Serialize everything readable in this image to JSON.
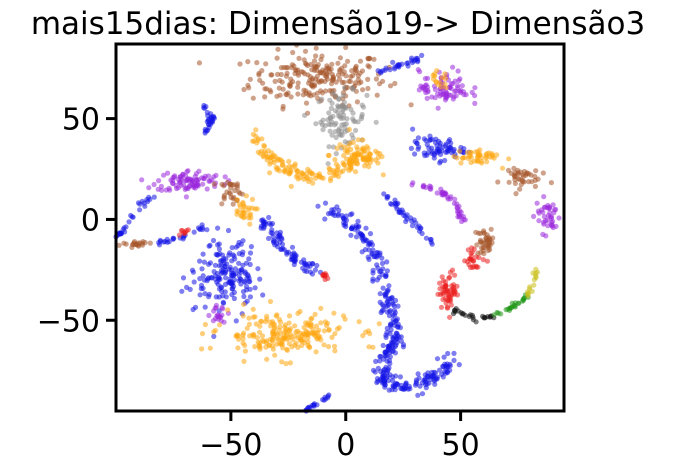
{
  "chart_data": {
    "type": "scatter",
    "title": "mais15dias: Dimensão19-> Dimensão3",
    "xlabel": "",
    "ylabel": "",
    "xlim": [
      -100,
      95
    ],
    "ylim": [
      -95,
      87
    ],
    "x_ticks": [
      {
        "value": -50,
        "label": "−50"
      },
      {
        "value": 0,
        "label": "0"
      },
      {
        "value": 50,
        "label": "50"
      }
    ],
    "y_ticks": [
      {
        "value": 50,
        "label": "50"
      },
      {
        "value": 0,
        "label": "0"
      },
      {
        "value": -50,
        "label": "−50"
      }
    ],
    "grid": false,
    "legend": false,
    "point_alpha": 0.55,
    "colors": {
      "blue": "#1414e6",
      "orange": "#ffa50f",
      "purple": "#9b28dc",
      "brown": "#a5562a",
      "gray": "#8c8c8c",
      "red": "#eb1e1e",
      "black": "#111111",
      "green": "#1e9614",
      "olive": "#c8be14"
    },
    "clusters": [
      {
        "color": "brown",
        "shape": "blob",
        "cx": -12,
        "cy": 70,
        "rx": 27,
        "ry": 12,
        "n": 220
      },
      {
        "color": "gray",
        "shape": "blob",
        "cx": -2,
        "cy": 50,
        "rx": 10,
        "ry": 12,
        "n": 90
      },
      {
        "color": "orange",
        "shape": "blob",
        "cx": 4,
        "cy": 32,
        "rx": 10,
        "ry": 7,
        "n": 60
      },
      {
        "color": "orange",
        "shape": "poly",
        "points": [
          [
            -40,
            42
          ],
          [
            -33,
            30
          ],
          [
            -22,
            23
          ],
          [
            -10,
            21
          ],
          [
            2,
            27
          ],
          [
            12,
            32
          ]
        ],
        "w": 3.5,
        "n": 140
      },
      {
        "color": "blue",
        "shape": "poly",
        "points": [
          [
            -62,
            57
          ],
          [
            -58,
            50
          ],
          [
            -61,
            43
          ]
        ],
        "w": 1.5,
        "n": 30
      },
      {
        "color": "purple",
        "shape": "blob",
        "cx": -68,
        "cy": 19,
        "rx": 13,
        "ry": 5,
        "n": 90
      },
      {
        "color": "brown",
        "shape": "blob",
        "cx": -50,
        "cy": 14,
        "rx": 5,
        "ry": 6,
        "n": 30
      },
      {
        "color": "orange",
        "shape": "blob",
        "cx": -45,
        "cy": 4,
        "rx": 5,
        "ry": 6,
        "n": 30
      },
      {
        "color": "blue",
        "shape": "poly",
        "points": [
          [
            -37,
            1
          ],
          [
            -30,
            -10
          ],
          [
            -22,
            -20
          ],
          [
            -14,
            -25
          ]
        ],
        "w": 3,
        "n": 80
      },
      {
        "color": "red",
        "shape": "blob",
        "cx": -9,
        "cy": -28,
        "rx": 2,
        "ry": 2,
        "n": 10
      },
      {
        "color": "blue",
        "shape": "poly",
        "points": [
          [
            -83,
            12
          ],
          [
            -90,
            6
          ],
          [
            -97,
            -5
          ],
          [
            -99,
            -8
          ]
        ],
        "w": 1.2,
        "n": 30
      },
      {
        "color": "blue",
        "shape": "poly",
        "points": [
          [
            -82,
            -12
          ],
          [
            -72,
            -9
          ],
          [
            -60,
            -3
          ]
        ],
        "w": 1.2,
        "n": 25
      },
      {
        "color": "brown",
        "shape": "blob",
        "cx": -90,
        "cy": -12,
        "rx": 5,
        "ry": 2,
        "n": 20
      },
      {
        "color": "red",
        "shape": "blob",
        "cx": -71,
        "cy": -6,
        "rx": 2,
        "ry": 2,
        "n": 8
      },
      {
        "color": "blue",
        "shape": "blob",
        "cx": -52,
        "cy": -27,
        "rx": 12,
        "ry": 15,
        "n": 170
      },
      {
        "color": "purple",
        "shape": "blob",
        "cx": -56,
        "cy": -47,
        "rx": 4,
        "ry": 4,
        "n": 20
      },
      {
        "color": "orange",
        "shape": "blob",
        "cx": -27,
        "cy": -57,
        "rx": 26,
        "ry": 10,
        "n": 210
      },
      {
        "color": "blue",
        "shape": "poly",
        "points": [
          [
            -8,
            7
          ],
          [
            5,
            -5
          ],
          [
            14,
            -20
          ],
          [
            18,
            -38
          ],
          [
            20,
            -50
          ],
          [
            22,
            -62
          ],
          [
            16,
            -70
          ],
          [
            15,
            -80
          ],
          [
            26,
            -83
          ],
          [
            36,
            -80
          ],
          [
            47,
            -70
          ]
        ],
        "w": 4,
        "n": 330
      },
      {
        "color": "blue",
        "shape": "poly",
        "points": [
          [
            -18,
            -95
          ],
          [
            -6,
            -87
          ]
        ],
        "w": 1.2,
        "n": 20
      },
      {
        "color": "blue",
        "shape": "poly",
        "points": [
          [
            18,
            12
          ],
          [
            25,
            3
          ],
          [
            32,
            -5
          ],
          [
            38,
            -12
          ]
        ],
        "w": 1.5,
        "n": 40
      },
      {
        "color": "purple",
        "shape": "poly",
        "points": [
          [
            28,
            18
          ],
          [
            40,
            15
          ],
          [
            48,
            8
          ],
          [
            51,
            -1
          ]
        ],
        "w": 1.2,
        "n": 45
      },
      {
        "color": "blue",
        "shape": "blob",
        "cx": 40,
        "cy": 35,
        "rx": 10,
        "ry": 5,
        "n": 70
      },
      {
        "color": "orange",
        "shape": "blob",
        "cx": 57,
        "cy": 31,
        "rx": 9,
        "ry": 4,
        "n": 45
      },
      {
        "color": "brown",
        "shape": "blob",
        "cx": 75,
        "cy": 21,
        "rx": 8,
        "ry": 5,
        "n": 40
      },
      {
        "color": "purple",
        "shape": "blob",
        "cx": 88,
        "cy": 2,
        "rx": 5,
        "ry": 8,
        "n": 40
      },
      {
        "color": "blue",
        "shape": "poly",
        "points": [
          [
            14,
            73
          ],
          [
            25,
            77
          ],
          [
            33,
            80
          ]
        ],
        "w": 1.5,
        "n": 30
      },
      {
        "color": "purple",
        "shape": "blob",
        "cx": 43,
        "cy": 65,
        "rx": 10,
        "ry": 8,
        "n": 80
      },
      {
        "color": "orange",
        "shape": "blob",
        "cx": 40,
        "cy": 69,
        "rx": 4,
        "ry": 4,
        "n": 15
      },
      {
        "color": "red",
        "shape": "blob",
        "cx": 45,
        "cy": -35,
        "rx": 4,
        "ry": 8,
        "n": 55
      },
      {
        "color": "red",
        "shape": "blob",
        "cx": 56,
        "cy": -20,
        "rx": 4,
        "ry": 5,
        "n": 25
      },
      {
        "color": "brown",
        "shape": "blob",
        "cx": 61,
        "cy": -11,
        "rx": 4,
        "ry": 6,
        "n": 40
      },
      {
        "color": "black",
        "shape": "poly",
        "points": [
          [
            47,
            -45
          ],
          [
            56,
            -49
          ],
          [
            64,
            -48
          ]
        ],
        "w": 1.2,
        "n": 25
      },
      {
        "color": "green",
        "shape": "poly",
        "points": [
          [
            64,
            -48
          ],
          [
            72,
            -44
          ],
          [
            79,
            -38
          ]
        ],
        "w": 1.2,
        "n": 25
      },
      {
        "color": "olive",
        "shape": "poly",
        "points": [
          [
            79,
            -38
          ],
          [
            82,
            -30
          ],
          [
            83,
            -24
          ]
        ],
        "w": 1.2,
        "n": 15
      }
    ]
  }
}
